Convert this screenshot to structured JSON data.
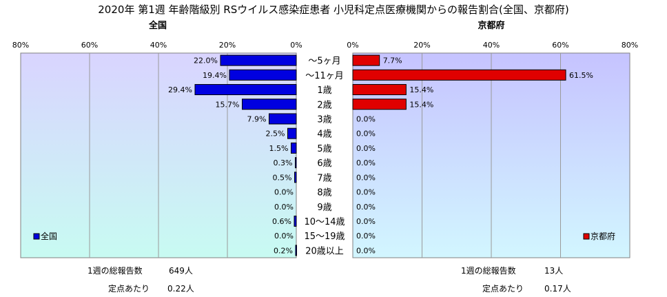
{
  "title": "2020年 第1週 年齢階級別 RSウイルス感染症患者 小児科定点医療機関からの報告割合(全国、京都府)",
  "categories": [
    "～5ヶ月",
    "～11ヶ月",
    "1歳",
    "2歳",
    "3歳",
    "4歳",
    "5歳",
    "6歳",
    "7歳",
    "8歳",
    "9歳",
    "10～14歳",
    "15～19歳",
    "20歳以上"
  ],
  "colors": {
    "national": "#0000e0",
    "kyoto": "#e00000",
    "national_bg": "#d6d6ff",
    "kyoto_bg": "#ccccff",
    "frame": "#808080"
  },
  "chart_data": [
    {
      "type": "bar",
      "orientation": "horizontal",
      "title": "全国",
      "direction": "right-to-left",
      "categories": [
        "～5ヶ月",
        "～11ヶ月",
        "1歳",
        "2歳",
        "3歳",
        "4歳",
        "5歳",
        "6歳",
        "7歳",
        "8歳",
        "9歳",
        "10～14歳",
        "15～19歳",
        "20歳以上"
      ],
      "series": [
        {
          "name": "全国",
          "values": [
            22.0,
            19.4,
            29.4,
            15.7,
            7.9,
            2.5,
            1.5,
            0.3,
            0.5,
            0.0,
            0.0,
            0.6,
            0.0,
            0.2
          ]
        }
      ],
      "xlim": [
        0,
        80
      ],
      "ticks": [
        "80%",
        "60%",
        "40%",
        "20%",
        "0%"
      ],
      "grid": true,
      "legend": "bottom-left",
      "totals": {
        "label": "1週の総報告数",
        "value": "649人",
        "per_label": "定点あたり",
        "per_value": "0.22人"
      }
    },
    {
      "type": "bar",
      "orientation": "horizontal",
      "title": "京都府",
      "direction": "left-to-right",
      "categories": [
        "～5ヶ月",
        "～11ヶ月",
        "1歳",
        "2歳",
        "3歳",
        "4歳",
        "5歳",
        "6歳",
        "7歳",
        "8歳",
        "9歳",
        "10～14歳",
        "15～19歳",
        "20歳以上"
      ],
      "series": [
        {
          "name": "京都府",
          "values": [
            7.7,
            61.5,
            15.4,
            15.4,
            0.0,
            0.0,
            0.0,
            0.0,
            0.0,
            0.0,
            0.0,
            0.0,
            0.0,
            0.0
          ]
        }
      ],
      "xlim": [
        0,
        80
      ],
      "ticks": [
        "0%",
        "20%",
        "40%",
        "60%",
        "80%"
      ],
      "grid": true,
      "legend": "bottom-right",
      "totals": {
        "label": "1週の総報告数",
        "value": "13人",
        "per_label": "定点あたり",
        "per_value": "0.17人"
      }
    }
  ]
}
